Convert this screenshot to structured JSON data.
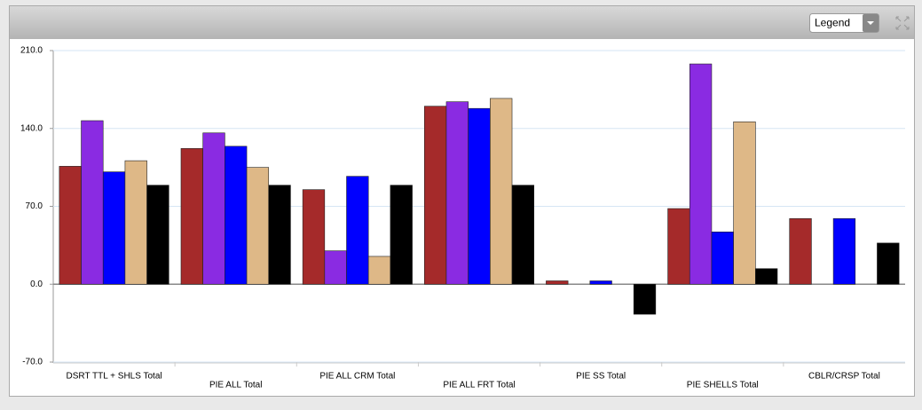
{
  "chart_data": {
    "type": "bar",
    "categories": [
      "DSRT TTL + SHLS Total",
      "PIE ALL Total",
      "PIE ALL CRM Total",
      "PIE ALL FRT Total",
      "PIE SS Total",
      "PIE SHELLS Total",
      "CBLR/CRSP Total"
    ],
    "series": [
      {
        "color": "#a52a2a",
        "values": [
          106,
          122,
          85,
          160,
          3,
          68,
          59
        ]
      },
      {
        "color": "#8a2be2",
        "values": [
          147,
          136,
          30,
          164,
          null,
          198,
          null
        ]
      },
      {
        "color": "#0000ff",
        "values": [
          101,
          124,
          97,
          158,
          3,
          47,
          59
        ]
      },
      {
        "color": "#deb887",
        "values": [
          111,
          105,
          25,
          167,
          null,
          146,
          null
        ]
      },
      {
        "color": "#000000",
        "values": [
          89,
          89,
          89,
          89,
          -27,
          14,
          37
        ]
      }
    ],
    "ylim": [
      -70,
      210
    ],
    "yticks": [
      {
        "value": -70,
        "label": "-70.0"
      },
      {
        "value": 0,
        "label": "0.0"
      },
      {
        "value": 70,
        "label": "70.0"
      },
      {
        "value": 140,
        "label": "140.0"
      },
      {
        "value": 210,
        "label": "210.0"
      }
    ],
    "grid": true
  },
  "toolbar": {
    "legend_button": "Legend"
  }
}
